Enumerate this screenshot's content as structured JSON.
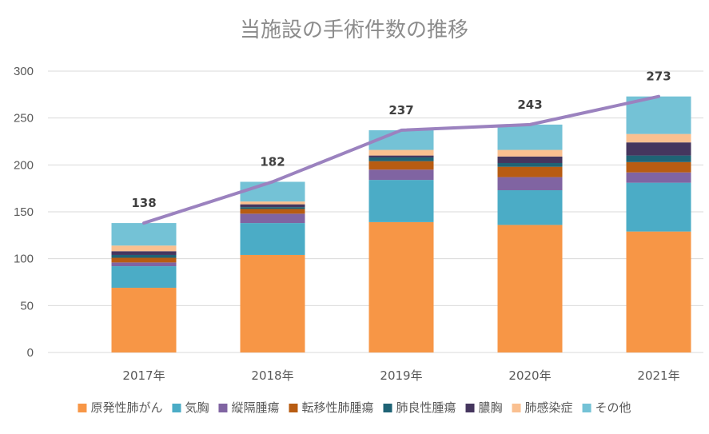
{
  "chart_data": {
    "type": "bar",
    "stacked": true,
    "title": "当施設の手術件数の推移",
    "xlabel": "",
    "ylabel": "",
    "ylim": [
      0,
      300
    ],
    "yticks": [
      0,
      50,
      100,
      150,
      200,
      250,
      300
    ],
    "grid": true,
    "legend": "bottom",
    "categories": [
      "2017年",
      "2018年",
      "2019年",
      "2020年",
      "2021年"
    ],
    "series": [
      {
        "name": "原発性肺がん",
        "color": "#F79646",
        "values": [
          69,
          104,
          139,
          136,
          129
        ]
      },
      {
        "name": "気胸",
        "color": "#4BACC6",
        "values": [
          23,
          34,
          45,
          37,
          52
        ]
      },
      {
        "name": "縦隔腫瘍",
        "color": "#8064A2",
        "values": [
          4,
          10,
          11,
          14,
          11
        ]
      },
      {
        "name": "転移性肺腫瘍",
        "color": "#B85C12",
        "values": [
          5,
          5,
          9,
          11,
          11
        ]
      },
      {
        "name": "肺良性腫瘍",
        "color": "#1F6375",
        "values": [
          3,
          2,
          4,
          4,
          7
        ]
      },
      {
        "name": "膿胸",
        "color": "#45365E",
        "values": [
          4,
          3,
          2,
          7,
          14
        ]
      },
      {
        "name": "肺感染症",
        "color": "#FAC090",
        "values": [
          6,
          3,
          6,
          7,
          9
        ]
      },
      {
        "name": "その他",
        "color": "#74C2D6",
        "values": [
          24,
          21,
          21,
          27,
          40
        ]
      }
    ],
    "totals": {
      "values": [
        138,
        182,
        237,
        243,
        273
      ],
      "line_color": "#9B82BF"
    }
  }
}
